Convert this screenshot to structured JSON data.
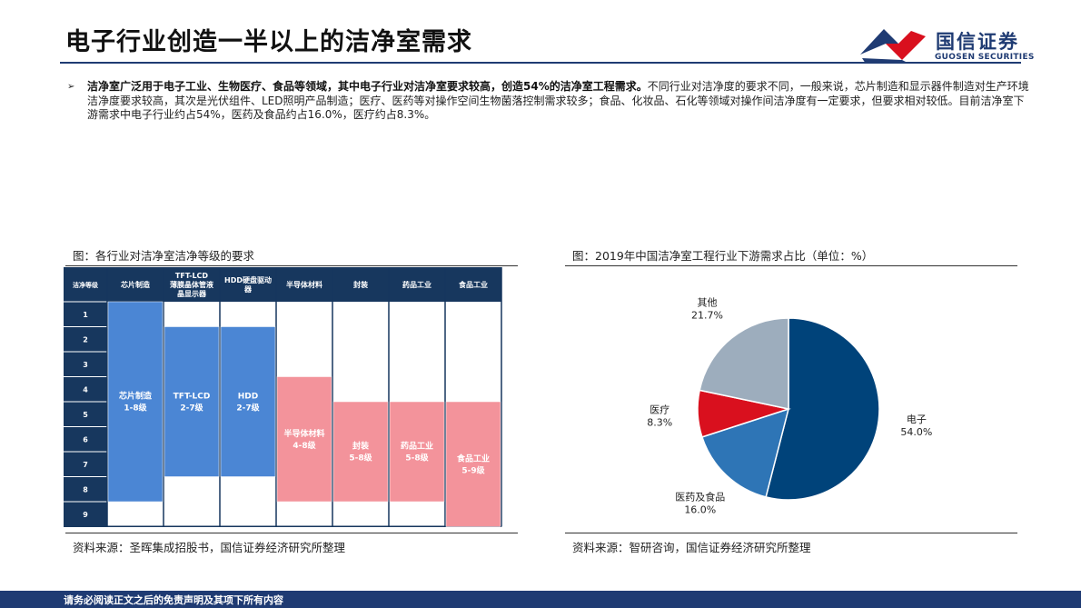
{
  "page": {
    "title": "电子行业创造一半以上的洁净室需求",
    "logo_cn": "国信证券",
    "logo_en": "GUOSEN SECURITIES",
    "bullet_bold": "洁净室广泛用于电子工业、生物医疗、食品等领域，其中电子行业对洁净室要求较高，创造54%的洁净室工程需求。",
    "bullet_rest": "不同行业对洁净度的要求不同，一般来说，芯片制造和显示器件制造对生产环境洁净度要求较高，其次是光伏组件、LED照明产品制造；医疗、医药等对操作空间生物菌落控制需求较多；食品、化妆品、石化等领域对操作间洁净度有一定要求，但要求相对较低。目前洁净室下游需求中电子行业约占54%，医药及食品约占16.0%，医疗约占8.3%。",
    "footer": "请务必阅读正文之后的免责声明及其项下所有内容"
  },
  "left_figure": {
    "caption": "图：各行业对洁净室洁净等级的要求",
    "source": "资料来源：圣晖集成招股书，国信证券经济研究所整理",
    "header_col0": "洁净等级",
    "columns": [
      "芯片制造",
      "TFT-LCD\n薄膜晶体管液\n晶显示器",
      "HDD硬盘驱动\n器",
      "半导体材料",
      "封装",
      "药品工业",
      "食品工业"
    ],
    "grades": [
      "1",
      "2",
      "3",
      "4",
      "5",
      "6",
      "7",
      "8",
      "9"
    ],
    "bars": [
      {
        "label": "芯片制造\n1-8级",
        "from": 1,
        "to": 8,
        "color": "#4b86d4"
      },
      {
        "label": "TFT-LCD\n2-7级",
        "from": 2,
        "to": 7,
        "color": "#4b86d4"
      },
      {
        "label": "HDD\n2-7级",
        "from": 2,
        "to": 7,
        "color": "#4b86d4"
      },
      {
        "label": "半导体材料\n4-8级",
        "from": 4,
        "to": 8,
        "color": "#f3939b"
      },
      {
        "label": "封装\n5-8级",
        "from": 5,
        "to": 8,
        "color": "#f3939b"
      },
      {
        "label": "药品工业\n5-8级",
        "from": 5,
        "to": 8,
        "color": "#f3939b"
      },
      {
        "label": "食品工业\n5-9级",
        "from": 5,
        "to": 9,
        "color": "#f3939b"
      }
    ]
  },
  "right_figure": {
    "caption": "图：2019年中国洁净室工程行业下游需求占比（单位：%）",
    "source": "资料来源：智研咨询，国信证券经济研究所整理"
  },
  "chart_data": {
    "type": "pie",
    "title": "2019年中国洁净室工程行业下游需求占比（单位：%）",
    "slices": [
      {
        "name": "电子",
        "value": 54.0,
        "label": "54.0%",
        "color": "#00437a"
      },
      {
        "name": "医药及食品",
        "value": 16.0,
        "label": "16.0%",
        "color": "#2e75b6"
      },
      {
        "name": "医疗",
        "value": 8.3,
        "label": "8.3%",
        "color": "#d9101e"
      },
      {
        "name": "其他",
        "value": 21.7,
        "label": "21.7%",
        "color": "#9dadbd"
      }
    ]
  },
  "colors": {
    "brand_navy": "#1f3b73",
    "header_navy": "#17375e",
    "logo_red": "#d9101e"
  }
}
